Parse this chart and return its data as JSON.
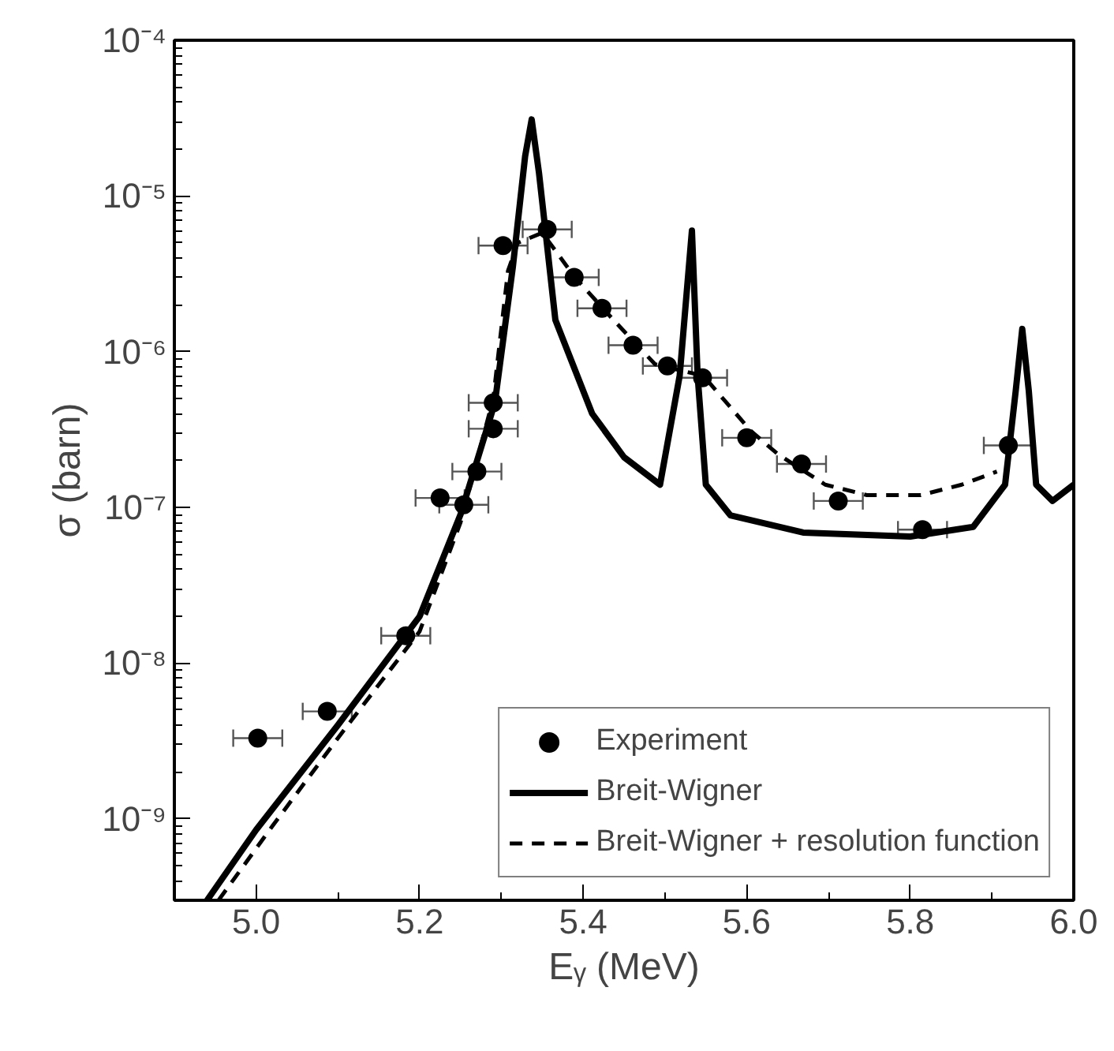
{
  "chart_data": {
    "type": "scatter",
    "xlabel": "Eᵧ (MeV)",
    "ylabel": "σ (barn)",
    "log": "y",
    "xlim": [
      4.9,
      6.0
    ],
    "ylim": [
      3e-10,
      0.0001
    ],
    "xticks": [
      {
        "value": 5.0,
        "label": "5.0"
      },
      {
        "value": 5.2,
        "label": "5.2"
      },
      {
        "value": 5.4,
        "label": "5.4"
      },
      {
        "value": 5.6,
        "label": "5.6"
      },
      {
        "value": 5.8,
        "label": "5.8"
      },
      {
        "value": 6.0,
        "label": "6.0"
      }
    ],
    "yticks": [
      {
        "value": 1e-09,
        "label": "10⁻⁹"
      },
      {
        "value": 1e-08,
        "label": "10⁻⁸"
      },
      {
        "value": 1e-07,
        "label": "10⁻⁷"
      },
      {
        "value": 1e-06,
        "label": "10⁻⁶"
      },
      {
        "value": 1e-05,
        "label": "10⁻⁵"
      },
      {
        "value": 0.0001,
        "label": "10⁻⁴"
      }
    ],
    "grid": false,
    "legend": "bottom right",
    "series": [
      {
        "name": "Experiment",
        "marker": "circle",
        "color": "#000000",
        "x": [
          5.002,
          5.087,
          5.183,
          5.225,
          5.254,
          5.27,
          5.29,
          5.29,
          5.302,
          5.356,
          5.389,
          5.423,
          5.461,
          5.503,
          5.546,
          5.6,
          5.667,
          5.712,
          5.815,
          5.92
        ],
        "values": [
          3.3e-09,
          4.9e-09,
          1.5e-08,
          1.15e-07,
          1.04e-07,
          1.7e-07,
          3.2e-07,
          4.7e-07,
          4.8e-06,
          6.1e-06,
          3e-06,
          1.9e-06,
          1.1e-06,
          8.1e-07,
          6.8e-07,
          2.8e-07,
          1.9e-07,
          1.1e-07,
          7.2e-08,
          2.5e-07
        ],
        "xerrors": [
          0.03,
          0.03,
          0.03,
          0.03,
          0.03,
          0.03,
          0.03,
          0.03,
          0.03,
          0.03,
          0.03,
          0.03,
          0.03,
          0.03,
          0.03,
          0.03,
          0.03,
          0.03,
          0.03,
          0.03
        ]
      },
      {
        "name": "Breit-Wigner",
        "type": "line",
        "line_style": "solid",
        "color": "#000000",
        "x": [
          4.94,
          5.0,
          5.1,
          5.2,
          5.25,
          5.292,
          5.314,
          5.329,
          5.337,
          5.346,
          5.366,
          5.411,
          5.45,
          5.494,
          5.518,
          5.533,
          5.54,
          5.55,
          5.58,
          5.669,
          5.8,
          5.877,
          5.916,
          5.929,
          5.937,
          5.945,
          5.954,
          5.974,
          6.0
        ],
        "values": [
          3e-10,
          8.5e-10,
          4e-09,
          2e-08,
          9e-08,
          4.7e-07,
          3.5e-06,
          1.8e-05,
          3.1e-05,
          1.4e-05,
          1.6e-06,
          4e-07,
          2.1e-07,
          1.4e-07,
          7e-07,
          6e-06,
          7e-07,
          1.4e-07,
          8.9e-08,
          6.9e-08,
          6.5e-08,
          7.5e-08,
          1.4e-07,
          5.6e-07,
          1.4e-06,
          5.6e-07,
          1.4e-07,
          1.1e-07,
          1.4e-07
        ]
      },
      {
        "name": "Breit-Wigner + resolution function",
        "type": "line",
        "line_style": "dashed",
        "color": "#000000",
        "x": [
          4.954,
          5.02,
          5.1,
          5.2,
          5.25,
          5.29,
          5.308,
          5.32,
          5.35,
          5.39,
          5.437,
          5.488,
          5.547,
          5.605,
          5.638,
          5.696,
          5.747,
          5.813,
          5.863,
          5.906
        ],
        "values": [
          3e-10,
          9e-10,
          3.3e-09,
          1.6e-08,
          8e-08,
          5e-07,
          3.3e-06,
          5e-06,
          5.8e-06,
          3e-06,
          1.6e-06,
          8.3e-07,
          7e-07,
          3.1e-07,
          2.2e-07,
          1.4e-07,
          1.2e-07,
          1.2e-07,
          1.4e-07,
          1.7e-07
        ]
      }
    ]
  }
}
